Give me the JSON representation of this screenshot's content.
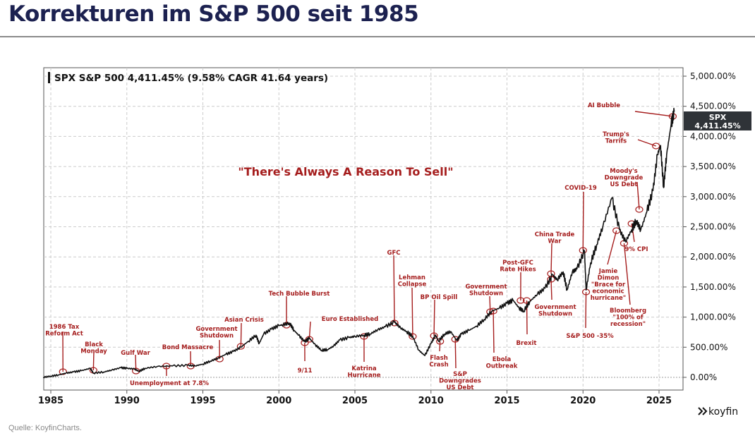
{
  "title": "Korrekturen im S&P 500 seit 1985",
  "source": "Quelle: KoyfinCharts.",
  "logo": "koyfin",
  "colors": {
    "title": "#1c2150",
    "annotation": "#a51d1d",
    "line": "#111111",
    "tag_bg": "#2f3338"
  },
  "chart_data": {
    "type": "line",
    "legend": "SPX S&P 500 4,411.45% (9.58% CAGR 41.64 years)",
    "quote": "\"There's Always A Reason To Sell\"",
    "last_value_tag": {
      "ticker": "SPX",
      "value": "4,411.45%"
    },
    "xlim": [
      1984.5,
      2026.6
    ],
    "ylim": [
      -200,
      5150
    ],
    "x_ticks": [
      1985,
      1990,
      1995,
      2000,
      2005,
      2010,
      2015,
      2020,
      2025
    ],
    "x_tick_labels": [
      "1985",
      "1990",
      "1995",
      "2000",
      "2005",
      "2010",
      "2015",
      "2020",
      "2025"
    ],
    "y_ticks": [
      0,
      500,
      1000,
      1500,
      2000,
      2500,
      3000,
      3500,
      4000,
      4500,
      5000
    ],
    "y_tick_labels": [
      "0.00%",
      "500.00%",
      "1,000.00%",
      "1,500.00%",
      "2,000.00%",
      "2,500.00%",
      "3,000.00%",
      "3,500.00%",
      "4,000.00%",
      "4,500.00%",
      "5,000.00%"
    ],
    "grid": true,
    "series": [
      {
        "name": "SPX S&P 500",
        "x": [
          1984.5,
          1985,
          1985.5,
          1986,
          1986.5,
          1987,
          1987.6,
          1987.8,
          1988.5,
          1989,
          1989.6,
          1990,
          1990.5,
          1990.8,
          1991.2,
          1992,
          1993,
          1994,
          1994.5,
          1995,
          1995.5,
          1996,
          1996.5,
          1997,
          1997.5,
          1998,
          1998.5,
          1998.7,
          1999,
          1999.5,
          2000,
          2000.2,
          2000.7,
          2001,
          2001.3,
          2001.7,
          2002,
          2002.4,
          2002.8,
          2003.2,
          2003.6,
          2004,
          2004.6,
          2005,
          2005.6,
          2006,
          2006.5,
          2007,
          2007.6,
          2008,
          2008.4,
          2008.8,
          2009.2,
          2009.6,
          2010,
          2010.3,
          2010.5,
          2010.9,
          2011.3,
          2011.7,
          2012,
          2012.5,
          2013,
          2013.5,
          2014,
          2014.5,
          2015,
          2015.4,
          2015.8,
          2016.1,
          2016.5,
          2017,
          2017.5,
          2018,
          2018.3,
          2018.7,
          2018.95,
          2019.3,
          2019.6,
          2020.1,
          2020.2,
          2020.5,
          2020.9,
          2021.3,
          2021.9,
          2022.4,
          2022.8,
          2023.2,
          2023.5,
          2023.8,
          2024.2,
          2024.6,
          2024.9,
          2025.1,
          2025.3,
          2025.5,
          2025.8,
          2026.0
        ],
        "y": [
          0,
          20,
          40,
          70,
          90,
          110,
          150,
          70,
          90,
          120,
          160,
          150,
          140,
          100,
          150,
          180,
          190,
          200,
          190,
          220,
          270,
          320,
          380,
          430,
          500,
          600,
          700,
          560,
          720,
          800,
          860,
          870,
          900,
          780,
          700,
          590,
          650,
          540,
          450,
          460,
          520,
          620,
          660,
          680,
          700,
          720,
          790,
          840,
          920,
          820,
          760,
          680,
          450,
          360,
          560,
          700,
          600,
          720,
          760,
          610,
          720,
          780,
          850,
          960,
          1100,
          1150,
          1230,
          1280,
          1150,
          1100,
          1260,
          1380,
          1480,
          1700,
          1620,
          1750,
          1450,
          1750,
          1800,
          2100,
          1450,
          1900,
          2200,
          2500,
          2980,
          2450,
          2250,
          2450,
          2600,
          2450,
          2750,
          3100,
          3700,
          3850,
          3150,
          3700,
          4200,
          4411
        ]
      }
    ],
    "annotations": [
      {
        "lines": [
          "1986 Tax",
          "Reform Act"
        ],
        "x": 1985.8,
        "y": 94
      },
      {
        "lines": [
          "Black",
          "Monday"
        ],
        "x": 1987.8,
        "y": 117
      },
      {
        "lines": [
          "Gulf War"
        ],
        "x": 1990.6,
        "y": 105
      },
      {
        "lines": [
          "Unemployment at 7.8%"
        ],
        "x": 1992.6,
        "y": 187
      },
      {
        "lines": [
          "Bond Massacre"
        ],
        "x": 1994.2,
        "y": 187
      },
      {
        "lines": [
          "Government",
          "Shutdown"
        ],
        "x": 1996.1,
        "y": 304
      },
      {
        "lines": [
          "Asian Crisis"
        ],
        "x": 1997.5,
        "y": 515
      },
      {
        "lines": [
          "Tech Bubble Burst"
        ],
        "x": 2000.5,
        "y": 866
      },
      {
        "lines": [
          "Euro Established"
        ],
        "x": 2002.0,
        "y": 632
      },
      {
        "lines": [
          "9/11"
        ],
        "x": 2001.7,
        "y": 574
      },
      {
        "lines": [
          "Katrina",
          "Hurricane"
        ],
        "x": 2005.6,
        "y": 679
      },
      {
        "lines": [
          "GFC"
        ],
        "x": 2007.6,
        "y": 902
      },
      {
        "lines": [
          "Lehman",
          "Collapse"
        ],
        "x": 2008.8,
        "y": 679
      },
      {
        "lines": [
          "BP Oil Spill"
        ],
        "x": 2010.2,
        "y": 691
      },
      {
        "lines": [
          "Flash",
          "Crash"
        ],
        "x": 2010.6,
        "y": 597
      },
      {
        "lines": [
          "S&P",
          "Downgrades",
          "US Debt"
        ],
        "x": 2011.6,
        "y": 632
      },
      {
        "lines": [
          "Government",
          "Shutdown"
        ],
        "x": 2013.9,
        "y": 1089
      },
      {
        "lines": [
          "Ebola",
          "Outbreak"
        ],
        "x": 2014.1,
        "y": 1101
      },
      {
        "lines": [
          "Post-GFC",
          "Rate Hikes"
        ],
        "x": 2015.9,
        "y": 1276
      },
      {
        "lines": [
          "Brexit"
        ],
        "x": 2016.3,
        "y": 1276
      },
      {
        "lines": [
          "China Trade",
          "War"
        ],
        "x": 2017.9,
        "y": 1721
      },
      {
        "lines": [
          "Government",
          "Shutdown"
        ],
        "x": 2017.9,
        "y": 1628
      },
      {
        "lines": [
          "COVID-19"
        ],
        "x": 2020.0,
        "y": 2108
      },
      {
        "lines": [
          "S&P 500 -35%"
        ],
        "x": 2020.2,
        "y": 1417
      },
      {
        "lines": [
          "Jamie",
          "Dimon",
          "\"Brace for",
          "economic",
          "hurricane\""
        ],
        "x": 2022.2,
        "y": 2436
      },
      {
        "lines": [
          "Bloomberg",
          "\"100% of",
          "recession\""
        ],
        "x": 2022.7,
        "y": 2225
      },
      {
        "lines": [
          "9% CPI"
        ],
        "x": 2023.2,
        "y": 2553
      },
      {
        "lines": [
          "Moody's",
          "Downgrade",
          "US Debt"
        ],
        "x": 2023.7,
        "y": 2787
      },
      {
        "lines": [
          "Trump's",
          "Tarrifs"
        ],
        "x": 2024.8,
        "y": 3841
      },
      {
        "lines": [
          "AI Bubble"
        ],
        "x": 2025.9,
        "y": 4333
      }
    ]
  }
}
